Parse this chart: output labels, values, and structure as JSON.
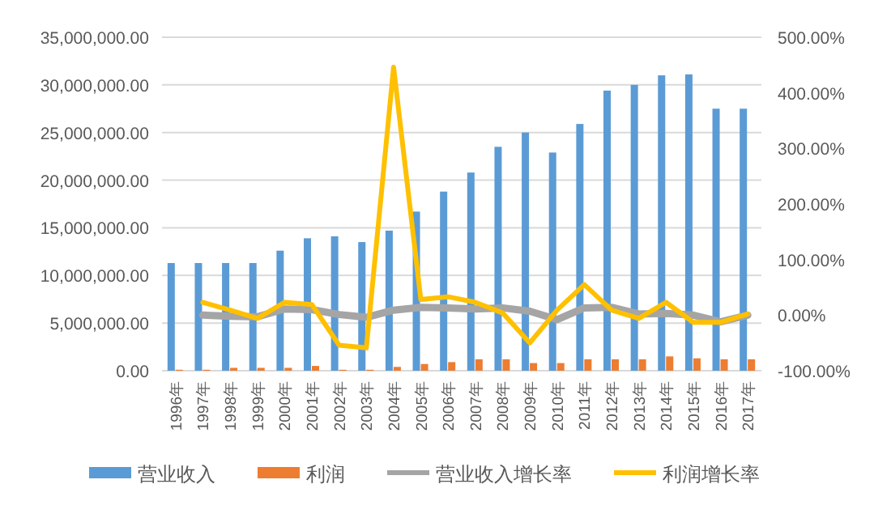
{
  "chart_data": {
    "type": "bar",
    "categories": [
      "1996年",
      "1997年",
      "1998年",
      "1999年",
      "2000年",
      "2001年",
      "2002年",
      "2003年",
      "2004年",
      "2005年",
      "2006年",
      "2007年",
      "2008年",
      "2009年",
      "2010年",
      "2011年",
      "2012年",
      "2013年",
      "2014年",
      "2015年",
      "2016年",
      "2017年"
    ],
    "series": [
      {
        "name": "营业收入",
        "color": "#5b9bd5",
        "values": [
          11300000,
          11300000,
          11300000,
          11300000,
          12600000,
          13900000,
          14100000,
          13500000,
          14700000,
          16700000,
          18800000,
          20800000,
          23500000,
          25000000,
          22900000,
          25900000,
          29400000,
          30000000,
          31000000,
          31100000,
          27500000,
          27500000
        ]
      },
      {
        "name": "利润",
        "color": "#ed7d31",
        "values": [
          100000,
          100000,
          300000,
          300000,
          300000,
          500000,
          100000,
          100000,
          400000,
          700000,
          900000,
          1200000,
          1200000,
          800000,
          800000,
          1200000,
          1200000,
          1200000,
          1500000,
          1300000,
          1200000,
          1200000
        ]
      },
      {
        "name": "营业收入增长率",
        "type": "line",
        "axis": "y2",
        "color": "#a5a5a5",
        "values": [
          null,
          0,
          -2,
          -3,
          11,
          10,
          1,
          -4,
          9,
          14,
          13,
          11,
          13,
          7,
          -8,
          13,
          14,
          2,
          3,
          0,
          -12,
          0
        ]
      },
      {
        "name": "利润增长率",
        "type": "line",
        "axis": "y2",
        "color": "#ffc000",
        "values": [
          null,
          23,
          9,
          -6,
          23,
          19,
          -54,
          -59,
          446,
          28,
          33,
          23,
          4,
          -50,
          9,
          55,
          9,
          -6,
          23,
          -13,
          -13,
          2
        ]
      }
    ],
    "ylim": [
      0,
      35000000
    ],
    "yticks": [
      {
        "value": 0,
        "label": "0.00"
      },
      {
        "value": 5000000,
        "label": "5,000,000.00"
      },
      {
        "value": 10000000,
        "label": "10,000,000.00"
      },
      {
        "value": 15000000,
        "label": "15,000,000.00"
      },
      {
        "value": 20000000,
        "label": "20,000,000.00"
      },
      {
        "value": 25000000,
        "label": "25,000,000.00"
      },
      {
        "value": 30000000,
        "label": "30,000,000.00"
      },
      {
        "value": 35000000,
        "label": "35,000,000.00"
      }
    ],
    "y2lim": [
      -100,
      500
    ],
    "y2ticks": [
      {
        "value": -100,
        "label": "-100.00%"
      },
      {
        "value": 0,
        "label": "0.00%"
      },
      {
        "value": 100,
        "label": "100.00%"
      },
      {
        "value": 200,
        "label": "200.00%"
      },
      {
        "value": 300,
        "label": "300.00%"
      },
      {
        "value": 400,
        "label": "400.00%"
      },
      {
        "value": 500,
        "label": "500.00%"
      }
    ],
    "grid": "y",
    "legend": "bottom"
  }
}
